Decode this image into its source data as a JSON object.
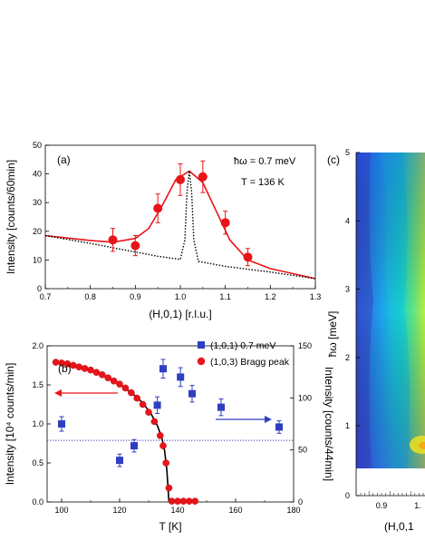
{
  "chart_data": [
    {
      "panel": "(a)",
      "type": "scatter",
      "xlabel": "(H,0,1) [r.l.u.]",
      "ylabel": "Intensity [counts/60min]",
      "xlim": [
        0.7,
        1.3
      ],
      "ylim": [
        0,
        50
      ],
      "xticks": [
        "0.7",
        "0.8",
        "0.9",
        "1.0",
        "1.1",
        "1.2",
        "1.3"
      ],
      "yticks": [
        "0",
        "10",
        "20",
        "30",
        "40",
        "50"
      ],
      "annotations": [
        "ħω = 0.7 meV",
        "T = 136 K"
      ],
      "series": [
        {
          "marker": "circle",
          "color": "#e8141a",
          "x": [
            0.85,
            0.9,
            0.95,
            1.0,
            1.05,
            1.1,
            1.15
          ],
          "y": [
            17,
            15,
            28,
            38,
            39,
            23,
            11
          ],
          "yerr": [
            4,
            3.5,
            5,
            5.5,
            5.5,
            4,
            3
          ]
        },
        {
          "style": "solid-line",
          "color": "#e8141a",
          "x": [
            0.7,
            0.8,
            0.85,
            0.9,
            0.93,
            0.96,
            0.99,
            1.02,
            1.05,
            1.08,
            1.11,
            1.15,
            1.2,
            1.3
          ],
          "y": [
            18.5,
            16.8,
            16.2,
            17.5,
            21,
            29,
            38,
            41,
            37,
            27,
            17,
            10,
            7,
            3.5
          ]
        },
        {
          "style": "dotted-line",
          "color": "#000000",
          "x": [
            0.7,
            0.8,
            0.9,
            0.95,
            1.0,
            1.01,
            1.015,
            1.02,
            1.025,
            1.03,
            1.04,
            1.1,
            1.2,
            1.3
          ],
          "y": [
            18.5,
            15.8,
            12.8,
            11.3,
            10.2,
            17,
            34,
            41,
            34,
            17,
            9.5,
            7.8,
            5.8,
            3.5
          ]
        }
      ]
    },
    {
      "panel": "(b)",
      "type": "scatter",
      "xlabel": "T [K]",
      "ylabel_left": "Intensity [10⁴ counts/min]",
      "ylabel_right": "Intensity [counts/44min]",
      "xlim": [
        95,
        180
      ],
      "ylim_left": [
        0,
        2.0
      ],
      "ylim_right": [
        0,
        150
      ],
      "xticks": [
        "100",
        "120",
        "140",
        "160",
        "180"
      ],
      "yticks_left": [
        "0.0",
        "0.5",
        "1.0",
        "1.5",
        "2.0"
      ],
      "yticks_right": [
        "0",
        "50",
        "100",
        "150"
      ],
      "legend": [
        "(1,0,1) 0.7 meV",
        "(1,0,3) Bragg peak"
      ],
      "legend_position": "top-right",
      "series": [
        {
          "name": "(1,0,1) 0.7 meV",
          "marker": "square",
          "color": "#2f3fc0",
          "axis": "right",
          "x": [
            100,
            120,
            125,
            133,
            135,
            141,
            145,
            155,
            175
          ],
          "y": [
            75,
            40,
            54,
            93,
            128,
            120,
            104,
            91,
            72
          ],
          "yerr": [
            7,
            6,
            6,
            8,
            9,
            9,
            8,
            8,
            6
          ]
        },
        {
          "name": "(1,0,3) Bragg peak",
          "marker": "circle",
          "color": "#e8141a",
          "axis": "left",
          "x": [
            98,
            100,
            102,
            104,
            106,
            108,
            110,
            112,
            114,
            116,
            118,
            120,
            122,
            124,
            126,
            128,
            130,
            132,
            134,
            135,
            136,
            137,
            138,
            140,
            142,
            144,
            146
          ],
          "y": [
            1.79,
            1.78,
            1.77,
            1.75,
            1.73,
            1.71,
            1.69,
            1.66,
            1.63,
            1.59,
            1.55,
            1.51,
            1.46,
            1.4,
            1.33,
            1.25,
            1.15,
            1.03,
            0.85,
            0.72,
            0.5,
            0.18,
            0.01,
            0.01,
            0.01,
            0.01,
            0.01
          ]
        },
        {
          "style": "solid-line",
          "color": "#000000",
          "axis": "left",
          "x": [
            98,
            105,
            110,
            115,
            120,
            125,
            128,
            131,
            133,
            134.5,
            135.5,
            136.3,
            137
          ],
          "y": [
            1.79,
            1.74,
            1.69,
            1.61,
            1.51,
            1.37,
            1.27,
            1.12,
            0.98,
            0.83,
            0.66,
            0.4,
            0.0
          ]
        },
        {
          "style": "dotted-hline",
          "color": "#2f3fc0",
          "axis": "left",
          "x": [
            95,
            180
          ],
          "y": [
            0.79,
            0.79
          ]
        }
      ]
    },
    {
      "panel": "(c)",
      "type": "heatmap",
      "ylabel": "ħω [meV]",
      "xlabel": "(H,0,1",
      "yticks": [
        "0",
        "1",
        "2",
        "3",
        "4",
        "5"
      ],
      "xticks": [
        "0.9",
        "1."
      ],
      "ylim": [
        0,
        5
      ]
    }
  ],
  "labels": {
    "a_panel": "(a)",
    "a_hw": "ħω = 0.7 meV",
    "a_T": "T = 136 K",
    "b_panel": "(b)",
    "c_panel": "(c)",
    "c_xlabel": "(H,0,1",
    "c_ylabel": "ħω [meV]"
  }
}
